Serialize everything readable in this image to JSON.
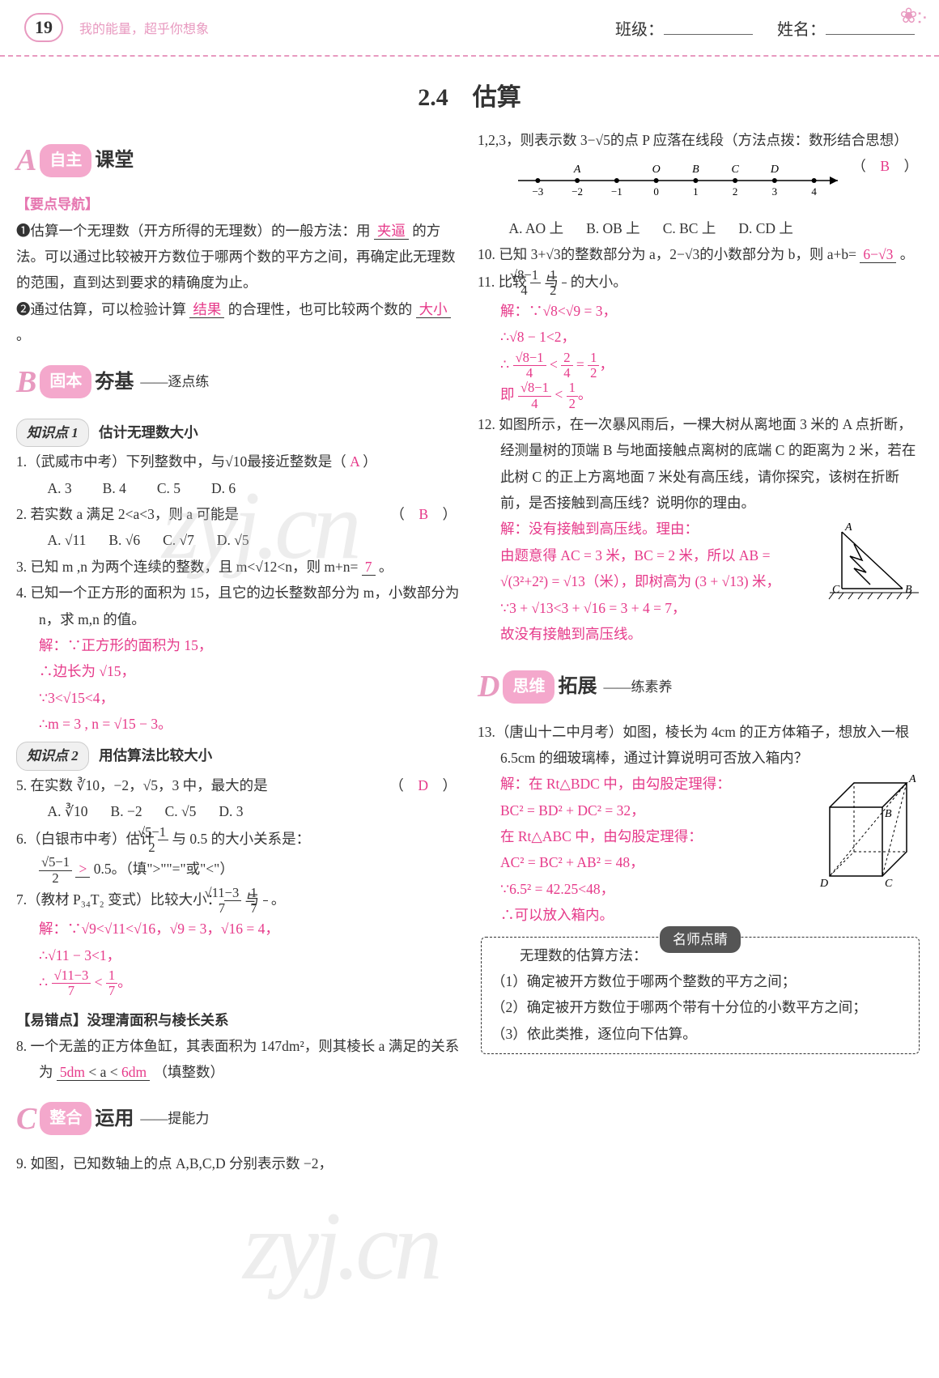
{
  "header": {
    "page_number": "19",
    "tagline": "我的能量，超乎你想象",
    "class_label": "班级：",
    "name_label": "姓名："
  },
  "title": "2.4　估算",
  "watermark": "zyj.cn",
  "colors": {
    "pink_accent": "#e89ac0",
    "answer_pink": "#e63a8a",
    "keypoint_pink": "#e676b0",
    "text": "#333333",
    "background": "#ffffff"
  },
  "sections": {
    "A": {
      "letter": "A",
      "pill": "自主",
      "heavy": "课堂"
    },
    "B": {
      "letter": "B",
      "pill": "固本",
      "heavy": "夯基",
      "sub": "——逐点练"
    },
    "C": {
      "letter": "C",
      "pill": "整合",
      "heavy": "运用",
      "sub": "——提能力"
    },
    "D": {
      "letter": "D",
      "pill": "思维",
      "heavy": "拓展",
      "sub": "——练素养"
    }
  },
  "keypoint_heading": "【要点导航】",
  "guidance": {
    "item1_pre": "❶估算一个无理数（开方所得的无理数）的一般方法：用",
    "item1_ans": "夹逼",
    "item1_mid": "的方法。可以通过比较被开方数位于哪两个数的平方之间，再确定此无理数的范围，直到达到要求的精确度为止。",
    "item2_pre": "❷通过估算，可以检验计算",
    "item2_ans1": "结果",
    "item2_mid": "的合理性，也可比较两个数的",
    "item2_ans2": "大小",
    "item2_end": "。"
  },
  "kp1": {
    "badge": "知识点 1",
    "title": "估计无理数大小"
  },
  "q1": {
    "text": "1.（武威市中考）下列整数中，与√10最接近整数是（",
    "ans": "A",
    "end": "）",
    "opts": [
      "A. 3",
      "B. 4",
      "C. 5",
      "D. 6"
    ]
  },
  "q2": {
    "text": "2. 若实数 a 满足 2<a<3，则 a 可能是",
    "ans": "B",
    "end": "（　　）",
    "opts": [
      "A. √11",
      "B. √6",
      "C. √7",
      "D. √5"
    ]
  },
  "q3": {
    "text": "3. 已知 m ,n 为两个连续的整数，且 m<√12<n，则 m+n=",
    "ans": "7",
    "end": "。"
  },
  "q4": {
    "text": "4. 已知一个正方形的面积为 15，且它的边长整数部分为 m，小数部分为 n，求 m,n 的值。",
    "sol": [
      "解：∵正方形的面积为 15，",
      "∴边长为 √15，",
      "∵3<√15<4，",
      "∴m = 3 , n = √15 − 3。"
    ]
  },
  "kp2": {
    "badge": "知识点 2",
    "title": "用估算法比较大小"
  },
  "q5": {
    "text": "5. 在实数 ∛10，−2，√5，3 中，最大的是",
    "ans": "D",
    "end": "（　　）",
    "opts": [
      "A. ∛10",
      "B. −2",
      "C. √5",
      "D. 3"
    ]
  },
  "q6": {
    "text1": "6.（白银市中考）估计",
    "frac_num": "√5−1",
    "frac_den": "2",
    "text2": "与 0.5 的大小关系是：",
    "line2_pre": "",
    "line2_ans": ">",
    "line2_post": "0.5。（填\">\"\"=\"或\"<\"）"
  },
  "q7": {
    "text1": "7.（教材 P₃₄T₂ 变式）比较大小：",
    "a_num": "√11−3",
    "a_den": "7",
    "text2": "与",
    "b_num": "1",
    "b_den": "7",
    "text3": "。",
    "sol": [
      "解：∵√9<√11<√16，√9 = 3，√16 = 4，",
      "∴√11 − 3<1，",
      "∴ (√11−3)/7 < 1/7。"
    ]
  },
  "errpoint": "【易错点】没理清面积与棱长关系",
  "q8": {
    "text1": "8. 一个无盖的正方体鱼缸，其表面积为 147dm²，则其棱长 a 满足的关系为",
    "ans1": "5dm",
    "mid": "< a <",
    "ans2": "6dm",
    "end": "（填整数）"
  },
  "q9": {
    "text": "9. 如图，已知数轴上的点 A,B,C,D 分别表示数 −2，"
  },
  "q9_cont": {
    "text1": "1,2,3，则表示数 3−√5的点 P 应落在线段（方法点拨：数形结合思想）",
    "ans": "B",
    "end": "（　　）",
    "opts": [
      "A. AO 上",
      "B. OB 上",
      "C. BC 上",
      "D. CD 上"
    ]
  },
  "numline": {
    "points": [
      {
        "x": -3,
        "label": "−3"
      },
      {
        "x": -2,
        "label": "−2",
        "name": "A"
      },
      {
        "x": -1,
        "label": "−1"
      },
      {
        "x": 0,
        "label": "0",
        "name": "O"
      },
      {
        "x": 1,
        "label": "1",
        "name": "B"
      },
      {
        "x": 2,
        "label": "2",
        "name": "C"
      },
      {
        "x": 3,
        "label": "3",
        "name": "D"
      },
      {
        "x": 4,
        "label": "4"
      }
    ],
    "range": [
      -3.5,
      4.5
    ]
  },
  "q10": {
    "text": "10. 已知 3+√3的整数部分为 a，2−√3的小数部分为 b，则 a+b=",
    "ans": "6−√3",
    "end": "。"
  },
  "q11": {
    "text1": "11. 比较",
    "a_num": "√8−1",
    "a_den": "4",
    "text2": "与",
    "b_num": "1",
    "b_den": "2",
    "text3": "的大小。",
    "sol": [
      "解：∵√8<√9 = 3，",
      "∴√8 − 1<2，",
      "∴ (√8−1)/4 < 2/4 = 1/2，",
      "即 (√8−1)/4 < 1/2。"
    ]
  },
  "q12": {
    "text": "12. 如图所示，在一次暴风雨后，一棵大树从离地面 3 米的 A 点折断，经测量树的顶端 B 与地面接触点离树的底端 C 的距离为 2 米，若在此树 C 的正上方离地面 7 米处有高压线，请你探究，该树在折断前，是否接触到高压线？说明你的理由。",
    "sol": [
      "解：没有接触到高压线。理由：",
      "由题意得 AC = 3 米，BC = 2 米，所以 AB = √(3²+2²) = √13（米），即树高为 (3 + √13) 米，",
      "∵3 + √13<3 + √16 = 3 + 4 = 7，",
      "故没有接触到高压线。"
    ],
    "diagram_labels": {
      "A": "A",
      "B": "B",
      "C": "C"
    }
  },
  "q13": {
    "text": "13.（唐山十二中月考）如图，棱长为 4cm 的正方体箱子，想放入一根 6.5cm 的细玻璃棒，通过计算说明可否放入箱内？",
    "sol": [
      "解：在 Rt△BDC 中，由勾股定理得：",
      "BC² = BD² + DC² = 32，",
      "在 Rt△ABC 中，由勾股定理得：",
      "AC² = BC² + AB² = 48，",
      "∵6.5² = 42.25<48，",
      "∴可以放入箱内。"
    ],
    "diagram_labels": {
      "A": "A",
      "B": "B",
      "C": "C",
      "D": "D"
    }
  },
  "tipsbox": {
    "title": "名师点睛",
    "lead": "无理数的估算方法：",
    "items": [
      "（1）确定被开方数位于哪两个整数的平方之间；",
      "（2）确定被开方数位于哪两个带有十分位的小数平方之间；",
      "（3）依此类推，逐位向下估算。"
    ]
  }
}
